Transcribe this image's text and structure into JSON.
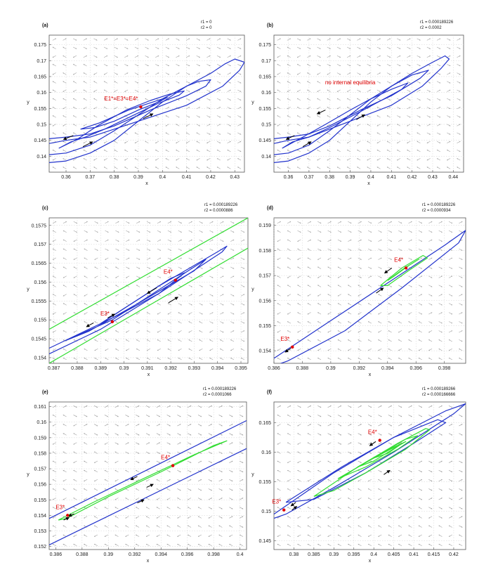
{
  "figure": {
    "equilibrium_color": "#e00000",
    "orbit_color": "#2233cc",
    "orbit_alt_color": "#33dd33",
    "field_color": "#a0a0a0"
  },
  "chart_data": [
    {
      "type": "line",
      "panel_label": "(a)",
      "params": [
        "r1 = 0",
        "r2 = 0"
      ],
      "xlabel": "x",
      "ylabel": "y",
      "xlim": [
        0.353,
        0.434
      ],
      "ylim": [
        0.135,
        0.178
      ],
      "xticks": [
        "0.36",
        "0.37",
        "0.38",
        "0.39",
        "0.4",
        "0.41",
        "0.42",
        "0.43"
      ],
      "yticks": [
        "0.14",
        "0.145",
        "0.15",
        "0.155",
        "0.16",
        "0.165",
        "0.17",
        "0.175"
      ],
      "annotation": "E1*=E3*=E4*",
      "equilibria": [
        {
          "label": "E1*=E3*=E4*",
          "x": 0.391,
          "y": 0.1555
        }
      ],
      "series": [
        {
          "x": [
            0.353,
            0.36,
            0.37,
            0.38,
            0.39,
            0.4,
            0.41,
            0.42,
            0.426,
            0.43,
            0.434,
            0.432,
            0.425,
            0.41,
            0.39,
            0.37,
            0.36,
            0.353
          ],
          "y": [
            0.138,
            0.1385,
            0.141,
            0.145,
            0.151,
            0.157,
            0.162,
            0.166,
            0.169,
            0.1705,
            0.1695,
            0.167,
            0.162,
            0.156,
            0.151,
            0.146,
            0.145,
            0.144
          ],
          "color": "blue"
        },
        {
          "x": [
            0.353,
            0.36,
            0.37,
            0.38,
            0.39,
            0.4,
            0.41,
            0.415,
            0.42,
            0.418,
            0.41,
            0.395,
            0.38,
            0.37,
            0.36,
            0.353
          ],
          "y": [
            0.1405,
            0.141,
            0.1435,
            0.148,
            0.153,
            0.158,
            0.162,
            0.1635,
            0.164,
            0.162,
            0.159,
            0.1545,
            0.1495,
            0.147,
            0.146,
            0.1455
          ],
          "color": "blue"
        },
        {
          "x": [
            0.357,
            0.365,
            0.373,
            0.385,
            0.395,
            0.403,
            0.409,
            0.407,
            0.398,
            0.387,
            0.376,
            0.368,
            0.362,
            0.357
          ],
          "y": [
            0.1425,
            0.1455,
            0.1495,
            0.1545,
            0.1575,
            0.1595,
            0.1605,
            0.1592,
            0.1565,
            0.1525,
            0.1485,
            0.146,
            0.1445,
            0.1425
          ],
          "color": "blue"
        },
        {
          "x": [
            0.366,
            0.374,
            0.386,
            0.396,
            0.402,
            0.399,
            0.39,
            0.38,
            0.372,
            0.366
          ],
          "y": [
            0.1485,
            0.1505,
            0.1545,
            0.157,
            0.1585,
            0.1572,
            0.1545,
            0.151,
            0.149,
            0.1485
          ],
          "color": "blue"
        }
      ],
      "arrows": [
        {
          "x": 0.363,
          "y": 0.1465,
          "dx": -0.004,
          "dy": -0.0012,
          "color": "black"
        },
        {
          "x": 0.367,
          "y": 0.143,
          "dx": 0.004,
          "dy": 0.0015,
          "color": "black"
        },
        {
          "x": 0.392,
          "y": 0.1518,
          "dx": 0.004,
          "dy": 0.0015,
          "color": "black"
        }
      ]
    },
    {
      "type": "line",
      "panel_label": "(b)",
      "params": [
        "r1 = 0.000189226",
        "r2 = 0.0002"
      ],
      "xlabel": "x",
      "ylabel": "y",
      "xlim": [
        0.353,
        0.445
      ],
      "ylim": [
        0.135,
        0.178
      ],
      "xticks": [
        "0.36",
        "0.37",
        "0.38",
        "0.39",
        "0.4",
        "0.41",
        "0.42",
        "0.43",
        "0.44"
      ],
      "yticks": [
        "0.14",
        "0.145",
        "0.15",
        "0.155",
        "0.16",
        "0.165",
        "0.17",
        "0.175"
      ],
      "annotation": "no internal equilibria",
      "equilibria": [],
      "series": [
        {
          "x": [
            0.353,
            0.36,
            0.37,
            0.38,
            0.39,
            0.4,
            0.41,
            0.42,
            0.43,
            0.436,
            0.438,
            0.434,
            0.425,
            0.41,
            0.39,
            0.37,
            0.36,
            0.353
          ],
          "y": [
            0.138,
            0.1385,
            0.141,
            0.145,
            0.151,
            0.157,
            0.162,
            0.166,
            0.1695,
            0.1715,
            0.1705,
            0.1675,
            0.162,
            0.156,
            0.151,
            0.146,
            0.145,
            0.144
          ],
          "color": "blue"
        },
        {
          "x": [
            0.353,
            0.36,
            0.37,
            0.38,
            0.39,
            0.4,
            0.41,
            0.42,
            0.428,
            0.424,
            0.41,
            0.395,
            0.38,
            0.37,
            0.36,
            0.353
          ],
          "y": [
            0.1405,
            0.141,
            0.1435,
            0.148,
            0.153,
            0.158,
            0.162,
            0.1655,
            0.167,
            0.1645,
            0.159,
            0.1545,
            0.1495,
            0.147,
            0.146,
            0.1455
          ],
          "color": "blue"
        },
        {
          "x": [
            0.357,
            0.367,
            0.378,
            0.39,
            0.4,
            0.41,
            0.418,
            0.415,
            0.405,
            0.392,
            0.38,
            0.37,
            0.362,
            0.357
          ],
          "y": [
            0.1425,
            0.146,
            0.15,
            0.1545,
            0.158,
            0.161,
            0.163,
            0.161,
            0.1575,
            0.153,
            0.149,
            0.146,
            0.1445,
            0.1425
          ],
          "color": "blue"
        }
      ],
      "arrows": [
        {
          "x": 0.363,
          "y": 0.1465,
          "dx": -0.004,
          "dy": -0.0012,
          "color": "black"
        },
        {
          "x": 0.367,
          "y": 0.143,
          "dx": 0.004,
          "dy": 0.0015,
          "color": "black"
        },
        {
          "x": 0.378,
          "y": 0.1545,
          "dx": -0.004,
          "dy": -0.0012,
          "color": "black"
        },
        {
          "x": 0.393,
          "y": 0.1515,
          "dx": 0.004,
          "dy": 0.0015,
          "color": "black"
        }
      ]
    },
    {
      "type": "line",
      "panel_label": "(c)",
      "params": [
        "r1 = 0.000189226",
        "r2 = 0.0000886"
      ],
      "xlabel": "x",
      "ylabel": "y",
      "xlim": [
        0.3868,
        0.3953
      ],
      "ylim": [
        0.15385,
        0.1577
      ],
      "xticks": [
        "0.387",
        "0.388",
        "0.389",
        "0.39",
        "0.391",
        "0.392",
        "0.393",
        "0.394",
        "0.395"
      ],
      "yticks": [
        "0.154",
        "0.1545",
        "0.155",
        "0.1555",
        "0.156",
        "0.1565",
        "0.157",
        "0.1575"
      ],
      "annotation": "",
      "equilibria": [
        {
          "label": "E3*",
          "x": 0.3895,
          "y": 0.15495
        },
        {
          "label": "E4*",
          "x": 0.3922,
          "y": 0.15605
        }
      ],
      "series": [
        {
          "x": [
            0.3868,
            0.3953
          ],
          "y": [
            0.15475,
            0.1577
          ],
          "color": "green"
        },
        {
          "x": [
            0.3868,
            0.3953
          ],
          "y": [
            0.15385,
            0.1569
          ],
          "color": "green"
        },
        {
          "x": [
            0.3868,
            0.389,
            0.3915,
            0.394,
            0.3944,
            0.3942,
            0.3915,
            0.389,
            0.3868
          ],
          "y": [
            0.15425,
            0.1549,
            0.1559,
            0.1568,
            0.15695,
            0.1568,
            0.1557,
            0.15475,
            0.1541
          ],
          "color": "blue"
        },
        {
          "x": [
            0.3875,
            0.3895,
            0.392,
            0.3935,
            0.393,
            0.3905,
            0.3885,
            0.3875
          ],
          "y": [
            0.15445,
            0.155,
            0.156,
            0.1566,
            0.1563,
            0.1554,
            0.1547,
            0.15445
          ],
          "color": "blue"
        },
        {
          "x": [
            0.389,
            0.3905,
            0.392,
            0.3926,
            0.3915,
            0.39,
            0.389
          ],
          "y": [
            0.1549,
            0.1555,
            0.1561,
            0.15625,
            0.1557,
            0.1552,
            0.1549
          ],
          "color": "blue"
        }
      ],
      "arrows": [
        {
          "x": 0.3914,
          "y": 0.15585,
          "dx": -0.0004,
          "dy": -0.00015,
          "color": "black"
        },
        {
          "x": 0.3919,
          "y": 0.15545,
          "dx": 0.0004,
          "dy": 0.00015,
          "color": "black"
        },
        {
          "x": 0.3887,
          "y": 0.15492,
          "dx": -0.0003,
          "dy": -0.0001,
          "color": "black"
        },
        {
          "x": 0.3893,
          "y": 0.15505,
          "dx": 0.0003,
          "dy": 0.0001,
          "color": "black"
        }
      ]
    },
    {
      "type": "line",
      "panel_label": "(d)",
      "params": [
        "r1 = 0.000189226",
        "r2 = 0.0000934"
      ],
      "xlabel": "x",
      "ylabel": "y",
      "xlim": [
        0.386,
        0.3995
      ],
      "ylim": [
        0.1535,
        0.1593
      ],
      "xticks": [
        "0.386",
        "0.388",
        "0.39",
        "0.392",
        "0.394",
        "0.396",
        "0.398"
      ],
      "yticks": [
        "0.154",
        "0.155",
        "0.156",
        "0.157",
        "0.158",
        "0.159"
      ],
      "annotation": "",
      "equilibria": [
        {
          "label": "E3*",
          "x": 0.3873,
          "y": 0.15415
        },
        {
          "label": "E4*",
          "x": 0.3953,
          "y": 0.1573
        }
      ],
      "series": [
        {
          "x": [
            0.386,
            0.39,
            0.394,
            0.398,
            0.3995,
            0.399,
            0.395,
            0.391,
            0.387,
            0.386
          ],
          "y": [
            0.1537,
            0.1552,
            0.1567,
            0.1582,
            0.1588,
            0.1583,
            0.1565,
            0.1548,
            0.1536,
            0.1534
          ],
          "color": "blue"
        },
        {
          "x": [
            0.3935,
            0.395,
            0.3965,
            0.3968,
            0.3955,
            0.394,
            0.3935
          ],
          "y": [
            0.1566,
            0.1573,
            0.1578,
            0.1577,
            0.1572,
            0.1566,
            0.1566
          ],
          "color": "green"
        },
        {
          "x": [
            0.394,
            0.3952,
            0.3962,
            0.3955,
            0.3944,
            0.394
          ],
          "y": [
            0.1568,
            0.1573,
            0.15765,
            0.1574,
            0.15695,
            0.1568
          ],
          "color": "green"
        }
      ],
      "arrows": [
        {
          "x": 0.3943,
          "y": 0.1573,
          "dx": -0.0005,
          "dy": -0.0002,
          "color": "black"
        },
        {
          "x": 0.3932,
          "y": 0.1563,
          "dx": 0.0005,
          "dy": 0.0002,
          "color": "black"
        },
        {
          "x": 0.3872,
          "y": 0.1541,
          "dx": -0.0004,
          "dy": -0.00015,
          "color": "black"
        }
      ]
    },
    {
      "type": "line",
      "panel_label": "(e)",
      "params": [
        "r1 = 0.000189226",
        "r2 = 0.0001066"
      ],
      "xlabel": "x",
      "ylabel": "y",
      "xlim": [
        0.3855,
        0.4005
      ],
      "ylim": [
        0.1518,
        0.1613
      ],
      "xticks": [
        "0.386",
        "0.388",
        "0.39",
        "0.392",
        "0.394",
        "0.396",
        "0.398",
        "0.4"
      ],
      "yticks": [
        "0.152",
        "0.153",
        "0.154",
        "0.155",
        "0.156",
        "0.157",
        "0.158",
        "0.159",
        "0.16",
        "0.161"
      ],
      "annotation": "",
      "equilibria": [
        {
          "label": "E3*",
          "x": 0.3869,
          "y": 0.154
        },
        {
          "label": "E4*",
          "x": 0.3949,
          "y": 0.1572
        }
      ],
      "series": [
        {
          "x": [
            0.3855,
            0.4005
          ],
          "y": [
            0.1538,
            0.1601
          ],
          "color": "blue"
        },
        {
          "x": [
            0.3855,
            0.4005
          ],
          "y": [
            0.1521,
            0.1583
          ],
          "color": "blue"
        },
        {
          "x": [
            0.3862,
            0.389,
            0.393,
            0.3965,
            0.399,
            0.398,
            0.394,
            0.39,
            0.3868,
            0.3862
          ],
          "y": [
            0.1537,
            0.1549,
            0.1565,
            0.1579,
            0.1588,
            0.1585,
            0.1568,
            0.1552,
            0.1538,
            0.1537
          ],
          "color": "green"
        }
      ],
      "arrows": [
        {
          "x": 0.3922,
          "y": 0.1565,
          "dx": -0.0005,
          "dy": -0.0002,
          "color": "black"
        },
        {
          "x": 0.3929,
          "y": 0.1558,
          "dx": 0.0005,
          "dy": 0.0002,
          "color": "black"
        },
        {
          "x": 0.3922,
          "y": 0.1548,
          "dx": 0.0005,
          "dy": 0.0002,
          "color": "black"
        },
        {
          "x": 0.3874,
          "y": 0.1541,
          "dx": -0.0004,
          "dy": -0.00015,
          "color": "black"
        },
        {
          "x": 0.3866,
          "y": 0.1537,
          "dx": 0.0004,
          "dy": 0.00015,
          "color": "black"
        }
      ]
    },
    {
      "type": "line",
      "panel_label": "(f)",
      "params": [
        "r1 = 0.000189266",
        "r2 = 0.000166666"
      ],
      "xlabel": "x",
      "ylabel": "y",
      "xlim": [
        0.375,
        0.423
      ],
      "ylim": [
        0.1435,
        0.1685
      ],
      "xticks": [
        "0.38",
        "0.385",
        "0.39",
        "0.395",
        "0.4",
        "0.405",
        "0.41",
        "0.415",
        "0.42"
      ],
      "yticks": [
        "0.145",
        "0.15",
        "0.155",
        "0.16",
        "0.165"
      ],
      "annotation": "",
      "equilibria": [
        {
          "label": "E3*",
          "x": 0.3775,
          "y": 0.1502
        },
        {
          "label": "E4*",
          "x": 0.4015,
          "y": 0.162
        }
      ],
      "series": [
        {
          "x": [
            0.375,
            0.39,
            0.405,
            0.418,
            0.423,
            0.42,
            0.405,
            0.39,
            0.378,
            0.375
          ],
          "y": [
            0.1495,
            0.1565,
            0.1625,
            0.167,
            0.1682,
            0.1665,
            0.16,
            0.154,
            0.1495,
            0.1488
          ],
          "color": "blue"
        },
        {
          "x": [
            0.378,
            0.392,
            0.405,
            0.416,
            0.418,
            0.41,
            0.398,
            0.385,
            0.378
          ],
          "y": [
            0.1515,
            0.1575,
            0.1625,
            0.1655,
            0.165,
            0.1615,
            0.1565,
            0.152,
            0.1515
          ],
          "color": "blue"
        },
        {
          "x": [
            0.385,
            0.396,
            0.406,
            0.413,
            0.414,
            0.408,
            0.398,
            0.39,
            0.385
          ],
          "y": [
            0.1525,
            0.1575,
            0.1615,
            0.164,
            0.1638,
            0.1605,
            0.1565,
            0.1535,
            0.1525
          ],
          "color": "green"
        },
        {
          "x": [
            0.391,
            0.4,
            0.408,
            0.411,
            0.406,
            0.398,
            0.391
          ],
          "y": [
            0.1555,
            0.159,
            0.1622,
            0.1628,
            0.1605,
            0.1575,
            0.1555
          ],
          "color": "green"
        },
        {
          "x": [
            0.396,
            0.403,
            0.408,
            0.406,
            0.4,
            0.396
          ],
          "y": [
            0.1575,
            0.1602,
            0.1618,
            0.161,
            0.1585,
            0.1575
          ],
          "color": "green"
        },
        {
          "x": [
            0.4,
            0.4045,
            0.4065,
            0.4035,
            0.4
          ],
          "y": [
            0.159,
            0.1606,
            0.1612,
            0.1598,
            0.159
          ],
          "color": "green"
        }
      ],
      "arrows": [
        {
          "x": 0.4005,
          "y": 0.1618,
          "dx": -0.0015,
          "dy": -0.0007,
          "color": "black"
        },
        {
          "x": 0.4025,
          "y": 0.1562,
          "dx": 0.0015,
          "dy": 0.0007,
          "color": "black"
        },
        {
          "x": 0.3805,
          "y": 0.1515,
          "dx": -0.0012,
          "dy": -0.0006,
          "color": "black"
        },
        {
          "x": 0.3795,
          "y": 0.1502,
          "dx": 0.0012,
          "dy": 0.0006,
          "color": "black"
        }
      ]
    }
  ]
}
